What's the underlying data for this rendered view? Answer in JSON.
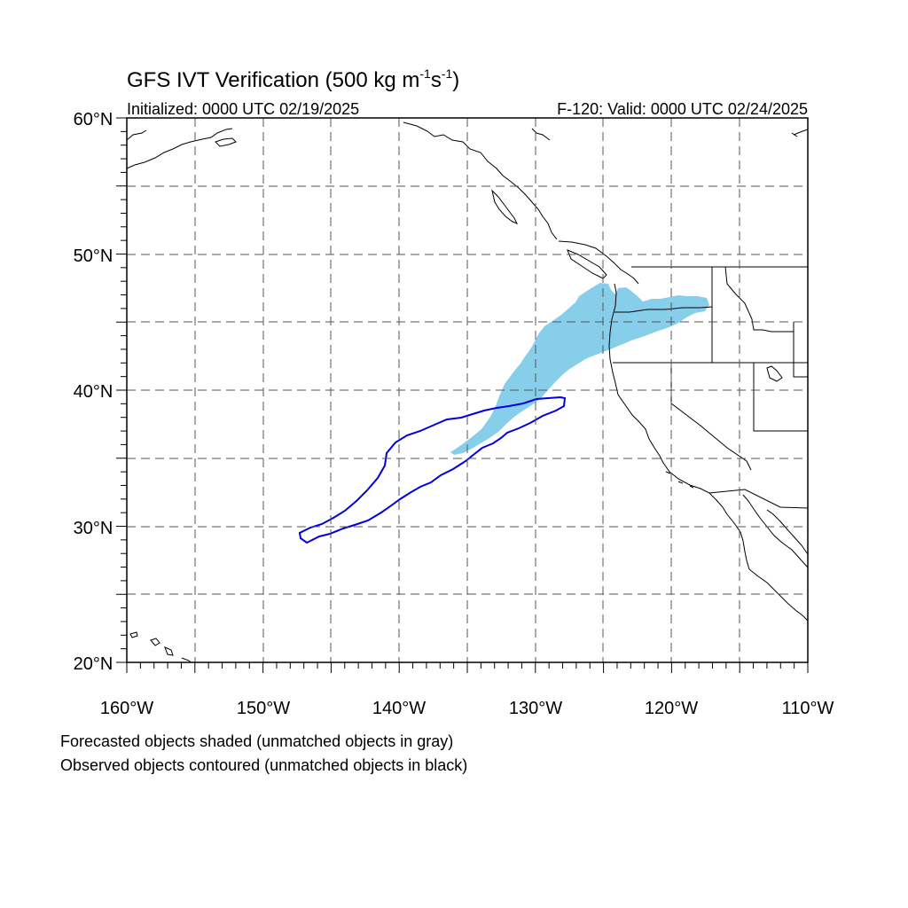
{
  "title": {
    "main": "GFS IVT Verification (500 kg m",
    "sup1": "-1",
    "mid": "s",
    "sup2": "-1",
    "end": ")"
  },
  "subtitle_left": "Initialized: 0000 UTC 02/19/2025",
  "subtitle_right": "F-120: Valid: 0000 UTC 02/24/2025",
  "lat_labels": [
    "60°N",
    "50°N",
    "40°N",
    "30°N",
    "20°N"
  ],
  "lon_labels": [
    "160°W",
    "150°W",
    "140°W",
    "130°W",
    "120°W",
    "110°W"
  ],
  "footnote_1": "Forecasted objects shaded (unmatched objects in gray)",
  "footnote_2": "Observed objects contoured (unmatched objects in black)",
  "colors": {
    "forecast_fill": "#87ceeb",
    "observed_contour": "#0000dd",
    "coastline": "#000000",
    "grid": "#555555"
  }
}
